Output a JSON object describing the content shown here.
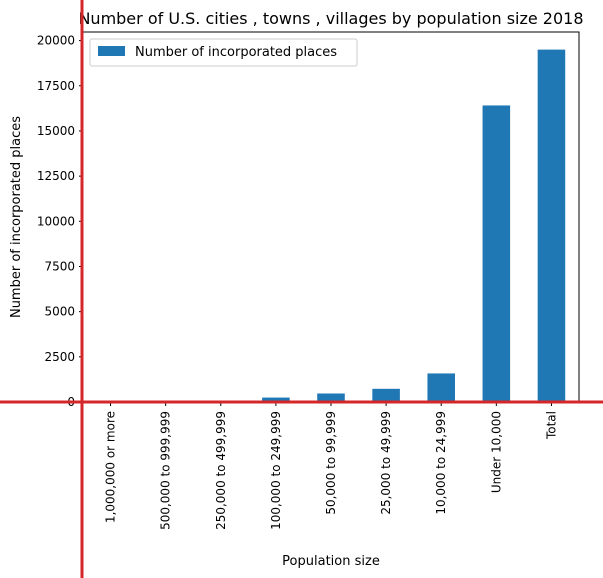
{
  "chart_data": {
    "type": "bar",
    "title": "Number of U.S. cities , towns , villages by population size 2018",
    "xlabel": "Population size",
    "ylabel": "Number of incorporated places",
    "categories": [
      "1,000,000 or more",
      "500,000 to 999,999",
      "250,000 to 499,999",
      "100,000 to 249,999",
      "50,000 to 99,999",
      "25,000 to 49,999",
      "10,000 to 24,999",
      "Under 10,000",
      "Total"
    ],
    "series": [
      {
        "name": "Number of incorporated places",
        "color": "#1f77b4",
        "values": [
          10,
          25,
          52,
          244,
          470,
          730,
          1580,
          16410,
          19500
        ]
      }
    ],
    "yticks": [
      0,
      2500,
      5000,
      7500,
      10000,
      12500,
      15000,
      17500,
      20000
    ],
    "ylim": [
      0,
      20475
    ],
    "grid": false,
    "legend_position": "top-left",
    "overlay_color": "#d62728"
  }
}
